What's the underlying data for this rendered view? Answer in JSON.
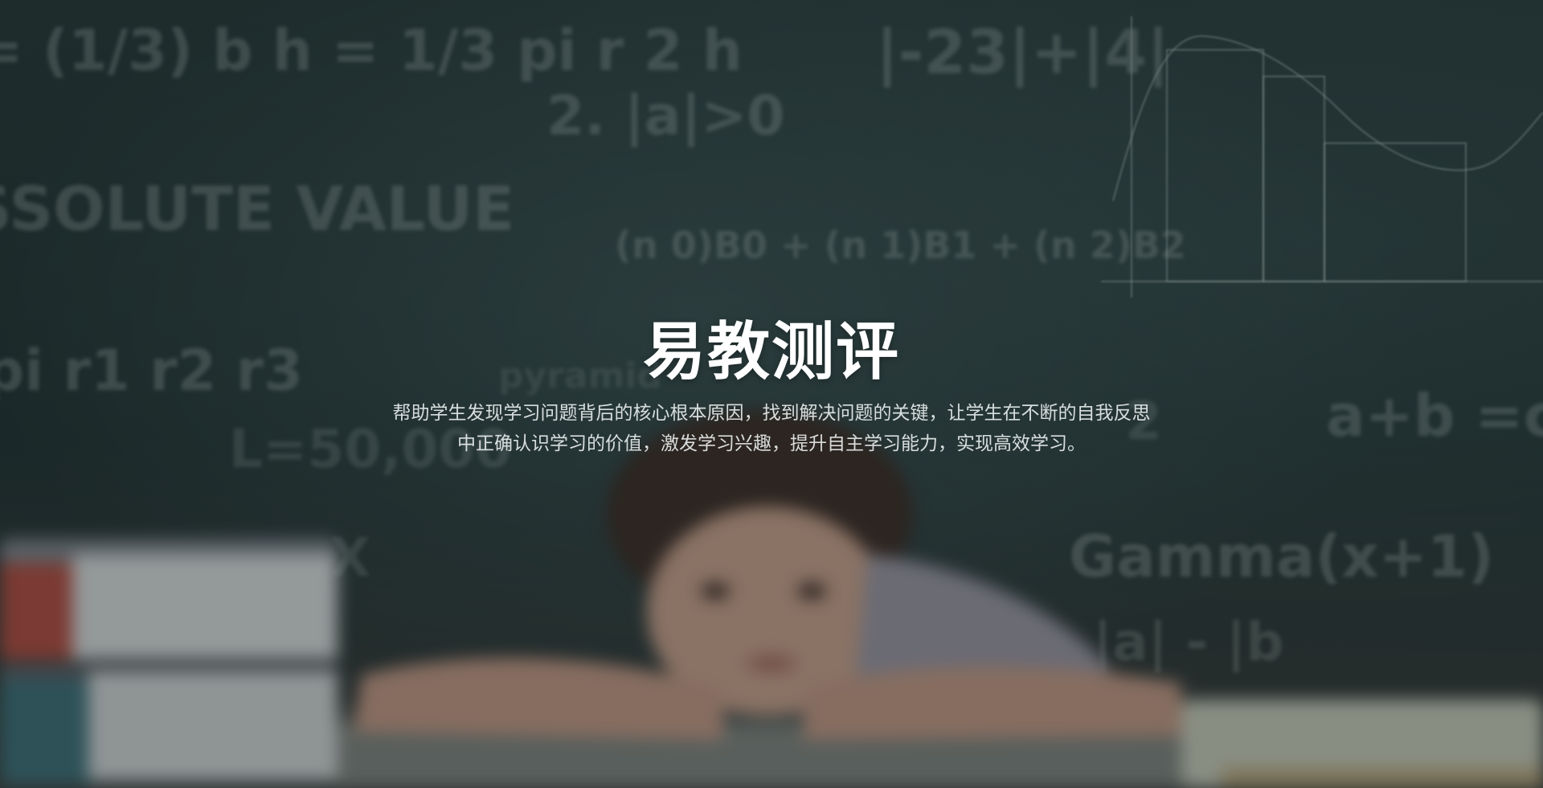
{
  "hero": {
    "title": "易教测评",
    "description": "帮助学生发现学习问题背后的核心根本原因，找到解决问题的关键，让学生在不断的自我反思中正确认识学习的价值，激发学习兴趣，提升自主学习能力，实现高效学习。"
  },
  "background": {
    "chalkboard_text": [
      "= (1/3) b h = 1/3 pi r 2 h",
      "|-23|+|4|",
      "2.  |a|>0",
      "SSOLUTE VALUE",
      "(n 0)B0 + (n 1)B1 + (n 2)B2",
      "pi r1 r2 r3",
      "pyramid",
      "a+b =c",
      "L=50,000",
      "Gamma(x+1)",
      "|a| - |b",
      "2",
      "X"
    ],
    "colors": {
      "chalkboard": "#1f2f2e",
      "title": "#ffffff",
      "description": "#ebf0f0"
    }
  }
}
